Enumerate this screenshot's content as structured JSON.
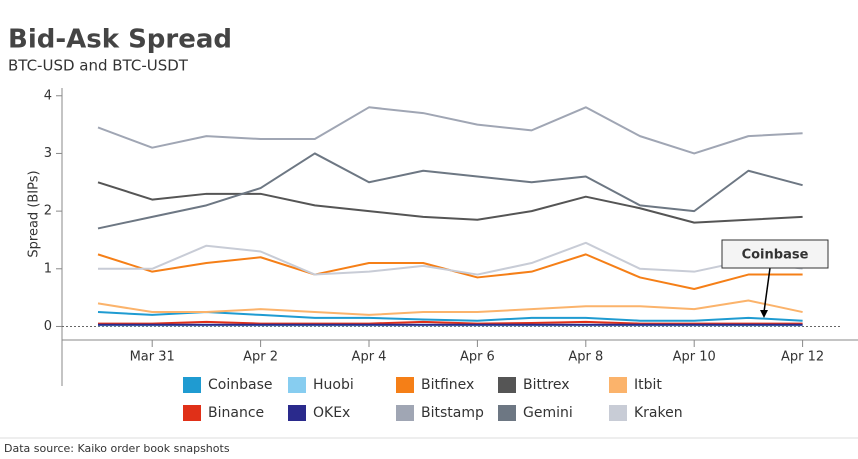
{
  "chart_data": {
    "type": "line",
    "title": "Bid-Ask Spread",
    "subtitle": "BTC-USD and BTC-USDT",
    "y_label": "Spread (BIPs)",
    "source": "Data source: Kaiko order book snapshots",
    "annotation": "Coinbase",
    "x": [
      "Mar 30",
      "Mar 31",
      "Apr 1",
      "Apr 2",
      "Apr 3",
      "Apr 4",
      "Apr 5",
      "Apr 6",
      "Apr 7",
      "Apr 8",
      "Apr 9",
      "Apr 10",
      "Apr 11",
      "Apr 12"
    ],
    "xticks": [
      "Mar 31",
      "Apr 2",
      "Apr 4",
      "Apr 6",
      "Apr 8",
      "Apr 10",
      "Apr 12"
    ],
    "ylim": [
      -0.2,
      4.1
    ],
    "yticks": [
      0,
      1,
      2,
      3,
      4
    ],
    "series": [
      {
        "name": "Coinbase",
        "color": "#1f9bd1",
        "values": [
          0.25,
          0.2,
          0.25,
          0.2,
          0.15,
          0.15,
          0.12,
          0.1,
          0.15,
          0.15,
          0.1,
          0.1,
          0.15,
          0.1
        ]
      },
      {
        "name": "Huobi",
        "color": "#87cdf0",
        "values": [
          0.02,
          0.02,
          0.02,
          0.02,
          0.02,
          0.02,
          0.02,
          0.02,
          0.02,
          0.02,
          0.02,
          0.02,
          0.02,
          0.02
        ]
      },
      {
        "name": "Bitfinex",
        "color": "#f57f17",
        "values": [
          1.25,
          0.95,
          1.1,
          1.2,
          0.9,
          1.1,
          1.1,
          0.85,
          0.95,
          1.25,
          0.85,
          0.65,
          0.9,
          0.9
        ]
      },
      {
        "name": "Bittrex",
        "color": "#555555",
        "values": [
          2.5,
          2.2,
          2.3,
          2.3,
          2.1,
          2.0,
          1.9,
          1.85,
          2.0,
          2.25,
          2.05,
          1.8,
          1.85,
          1.9
        ]
      },
      {
        "name": "Itbit",
        "color": "#fbb36b",
        "values": [
          0.4,
          0.25,
          0.25,
          0.3,
          0.25,
          0.2,
          0.25,
          0.25,
          0.3,
          0.35,
          0.35,
          0.3,
          0.45,
          0.25
        ]
      },
      {
        "name": "Binance",
        "color": "#e03018",
        "values": [
          0.05,
          0.05,
          0.08,
          0.05,
          0.05,
          0.05,
          0.08,
          0.05,
          0.06,
          0.08,
          0.05,
          0.05,
          0.05,
          0.05
        ]
      },
      {
        "name": "OKEx",
        "color": "#2a2a8c",
        "values": [
          0.03,
          0.03,
          0.03,
          0.03,
          0.03,
          0.03,
          0.03,
          0.03,
          0.03,
          0.03,
          0.03,
          0.03,
          0.03,
          0.03
        ]
      },
      {
        "name": "Bitstamp",
        "color": "#a0a6b4",
        "values": [
          3.45,
          3.1,
          3.3,
          3.25,
          3.25,
          3.8,
          3.7,
          3.5,
          3.4,
          3.8,
          3.3,
          3.0,
          3.3,
          3.35
        ]
      },
      {
        "name": "Gemini",
        "color": "#6d7783",
        "values": [
          1.7,
          1.9,
          2.1,
          2.4,
          3.0,
          2.5,
          2.7,
          2.6,
          2.5,
          2.6,
          2.1,
          2.0,
          2.7,
          2.45
        ]
      },
      {
        "name": "Kraken",
        "color": "#c8ccd6",
        "values": [
          1.0,
          1.0,
          1.4,
          1.3,
          0.9,
          0.95,
          1.05,
          0.9,
          1.1,
          1.45,
          1.0,
          0.95,
          1.15,
          1.0
        ]
      }
    ]
  }
}
